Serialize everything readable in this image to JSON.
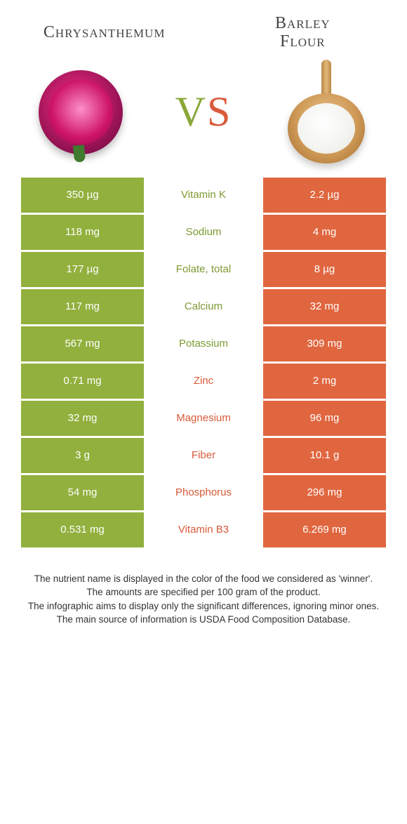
{
  "colors": {
    "green": "#91b03d",
    "orange": "#e0663f",
    "green_text": "#7e9a33",
    "orange_text": "#d85a3a",
    "white": "#ffffff"
  },
  "header": {
    "left_title": "Chrysanthemum",
    "right_title_line1": "Barley",
    "right_title_line2": "Flour",
    "vs_v": "V",
    "vs_s": "S"
  },
  "table": {
    "rows": [
      {
        "left": "350 µg",
        "label": "Vitamin K",
        "right": "2.2 µg",
        "winner": "left"
      },
      {
        "left": "118 mg",
        "label": "Sodium",
        "right": "4 mg",
        "winner": "left"
      },
      {
        "left": "177 µg",
        "label": "Folate, total",
        "right": "8 µg",
        "winner": "left"
      },
      {
        "left": "117 mg",
        "label": "Calcium",
        "right": "32 mg",
        "winner": "left"
      },
      {
        "left": "567 mg",
        "label": "Potassium",
        "right": "309 mg",
        "winner": "left"
      },
      {
        "left": "0.71 mg",
        "label": "Zinc",
        "right": "2 mg",
        "winner": "right"
      },
      {
        "left": "32 mg",
        "label": "Magnesium",
        "right": "96 mg",
        "winner": "right"
      },
      {
        "left": "3 g",
        "label": "Fiber",
        "right": "10.1 g",
        "winner": "right"
      },
      {
        "left": "54 mg",
        "label": "Phosphorus",
        "right": "296 mg",
        "winner": "right"
      },
      {
        "left": "0.531 mg",
        "label": "Vitamin B3",
        "right": "6.269 mg",
        "winner": "right"
      }
    ]
  },
  "footer": {
    "line1": "The nutrient name is displayed in the color of the food we considered as 'winner'.",
    "line2": "The amounts are specified per 100 gram of the product.",
    "line3": "The infographic aims to display only the significant differences, ignoring minor ones.",
    "line4": "The main source of information is USDA Food Composition Database."
  }
}
